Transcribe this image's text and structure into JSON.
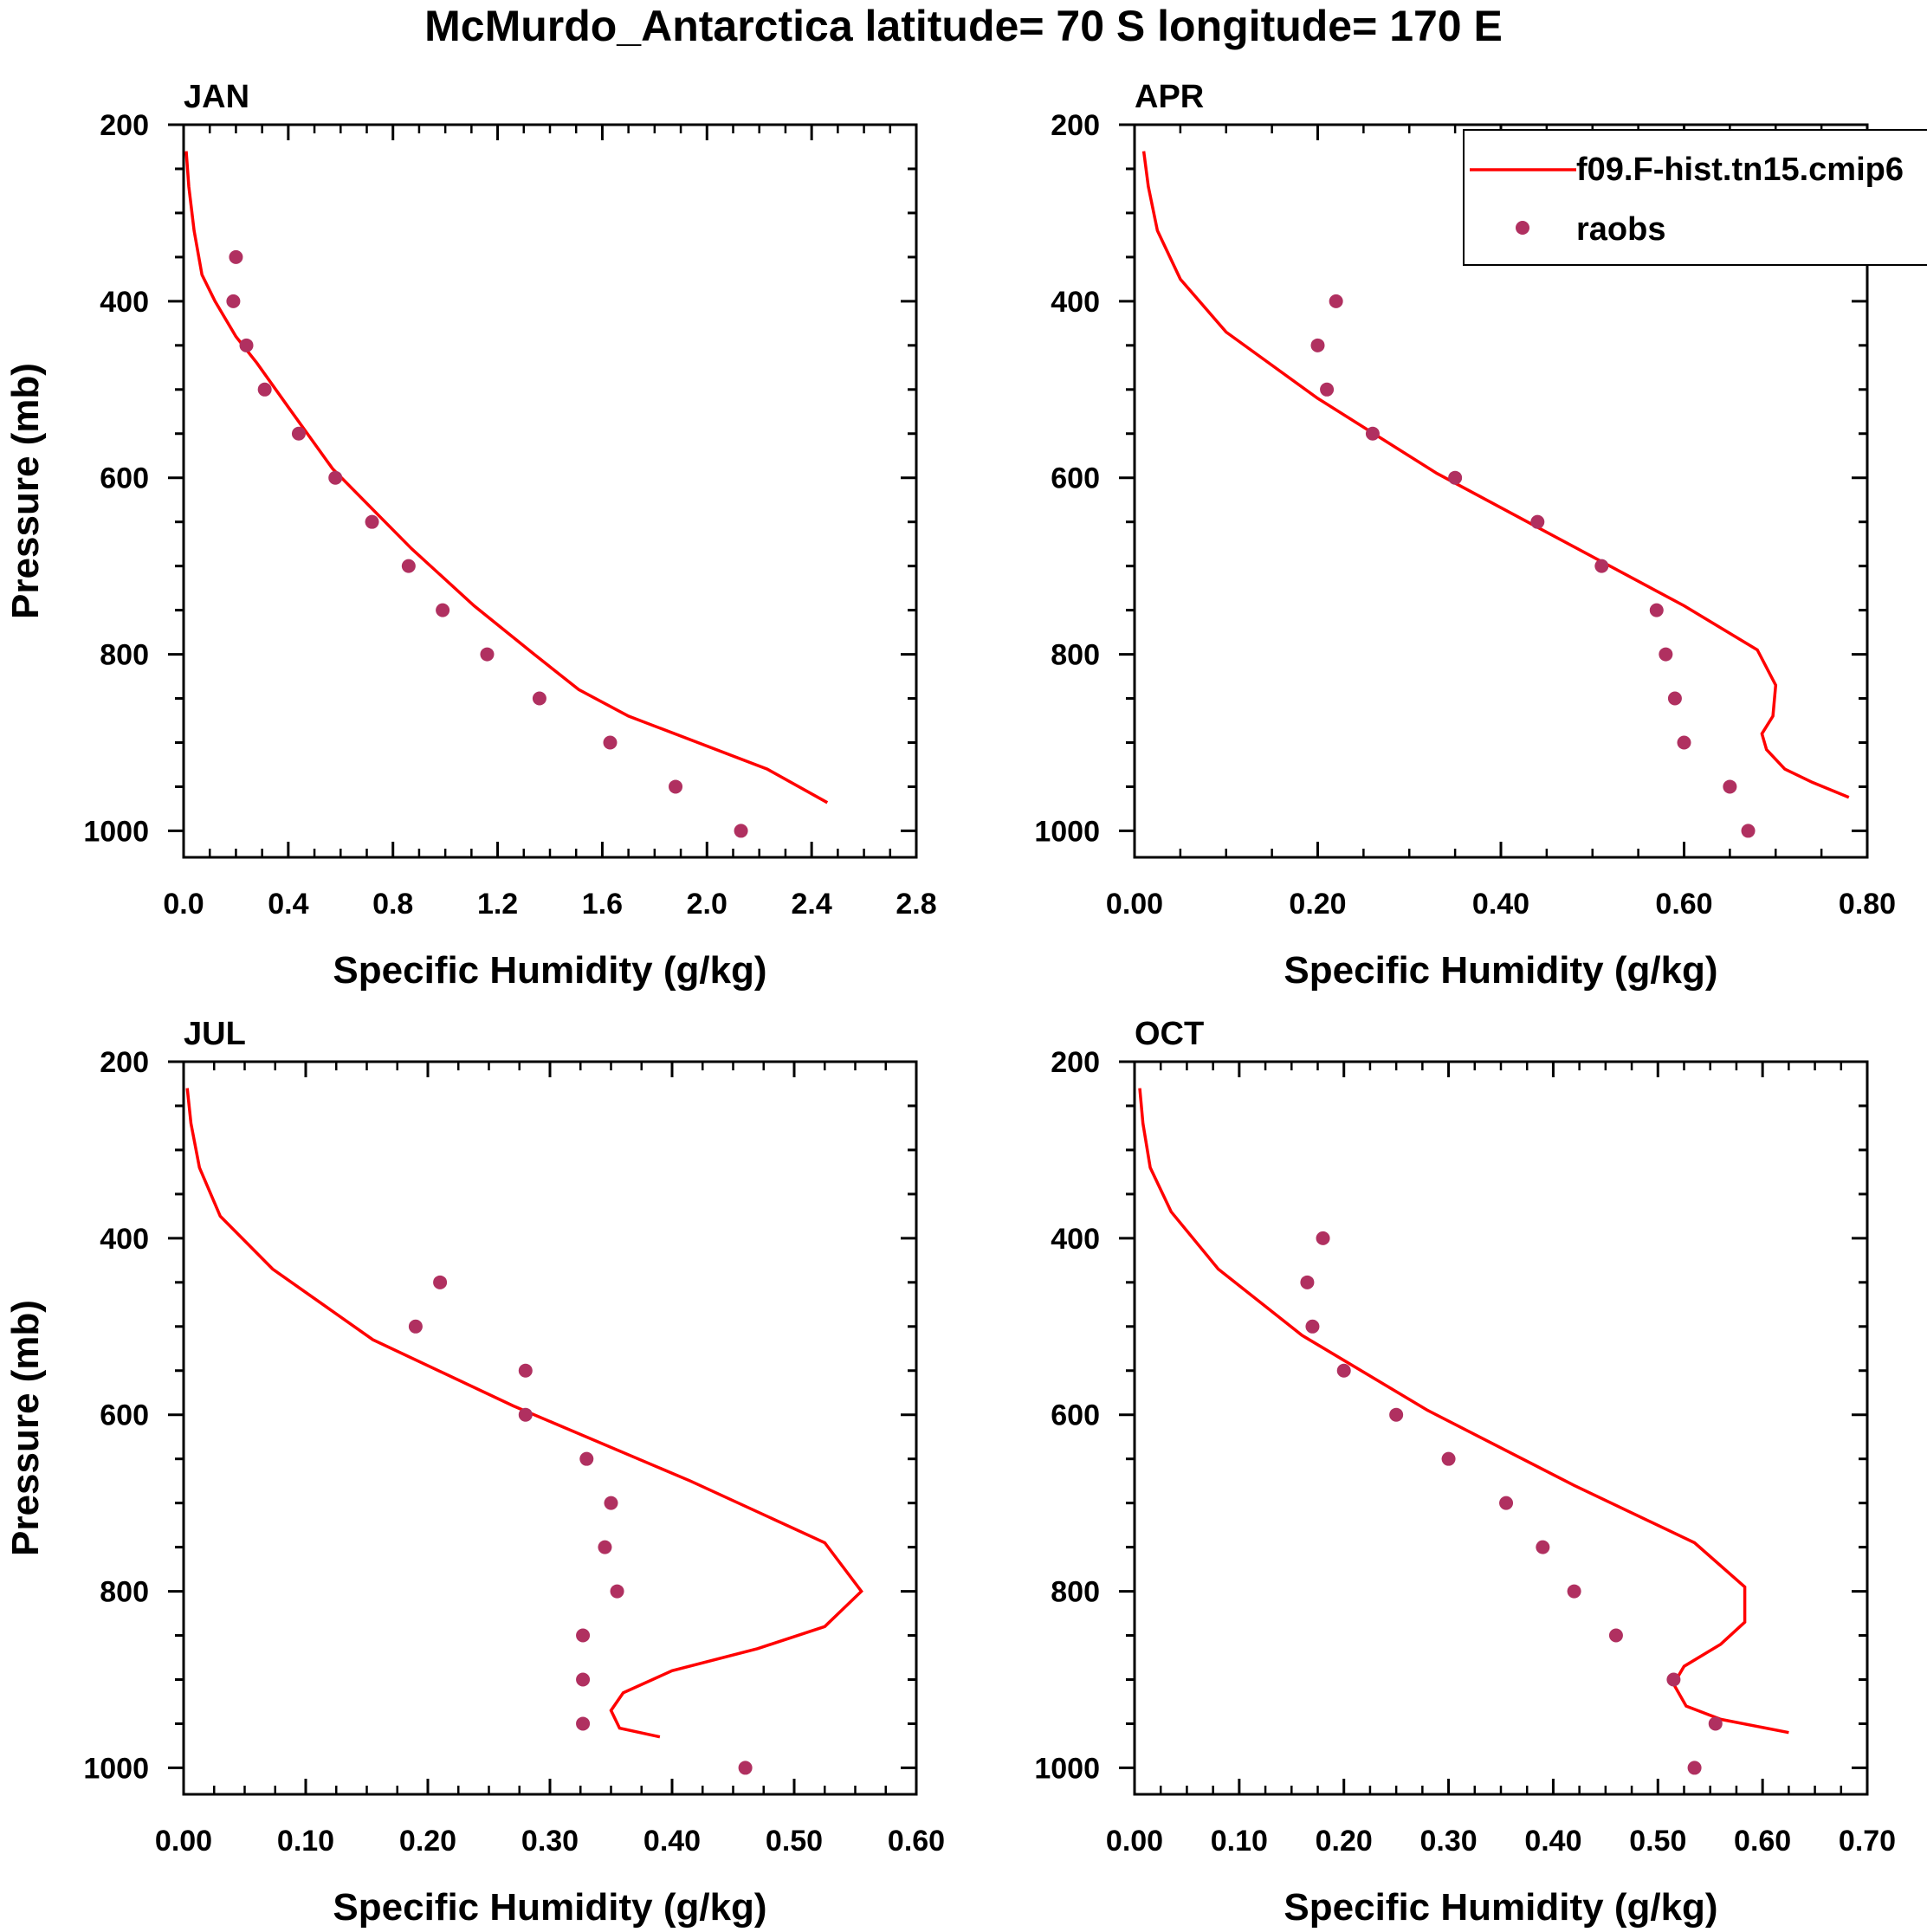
{
  "title": "McMurdo_Antarctica  latitude= 70 S longitude= 170 E",
  "colors": {
    "model_line": "#ff0000",
    "raobs_marker": "#b03060",
    "axes": "#000000"
  },
  "legend": {
    "placement": "top-right of APR panel",
    "model_label": "f09.F-hist.tn15.cmip6",
    "raobs_label": "raobs"
  },
  "chart_data": [
    {
      "type": "line",
      "panel_title": "JAN",
      "xlabel": "Specific Humidity (g/kg)",
      "ylabel": "Pressure (mb)",
      "xlim": [
        0,
        2.8
      ],
      "xticks": [
        0.0,
        0.4,
        0.8,
        1.2,
        1.6,
        2.0,
        2.4,
        2.8
      ],
      "xtick_labels": [
        "0.0",
        "0.4",
        "0.8",
        "1.2",
        "1.6",
        "2.0",
        "2.4",
        "2.8"
      ],
      "ylim": [
        1030,
        200
      ],
      "yticks": [
        200,
        400,
        600,
        800,
        1000
      ],
      "yticklabels": [
        "200",
        "400",
        "600",
        "800",
        "1000"
      ],
      "series": [
        {
          "name": "f09.F-hist.tn15.cmip6",
          "kind": "line",
          "x": [
            0.01,
            0.02,
            0.04,
            0.07,
            0.12,
            0.2,
            0.28,
            0.4,
            0.57,
            0.87,
            1.11,
            1.34,
            1.51,
            1.7,
            2.23,
            2.46
          ],
          "y": [
            230,
            270,
            320,
            370,
            400,
            440,
            470,
            520,
            590,
            680,
            745,
            800,
            840,
            870,
            930,
            968
          ]
        },
        {
          "name": "raobs",
          "kind": "scatter",
          "x": [
            0.2,
            0.19,
            0.24,
            0.31,
            0.44,
            0.58,
            0.72,
            0.86,
            0.99,
            1.16,
            1.36,
            1.63,
            1.88,
            2.13
          ],
          "y": [
            350,
            400,
            450,
            500,
            550,
            600,
            650,
            700,
            750,
            800,
            850,
            900,
            950,
            1000
          ]
        }
      ]
    },
    {
      "type": "line",
      "panel_title": "APR",
      "xlabel": "Specific Humidity (g/kg)",
      "ylabel": "",
      "xlim": [
        0,
        0.8
      ],
      "xticks": [
        0.0,
        0.2,
        0.4,
        0.6,
        0.8
      ],
      "xtick_labels": [
        "0.00",
        "0.20",
        "0.40",
        "0.60",
        "0.80"
      ],
      "ylim": [
        1030,
        200
      ],
      "yticks": [
        200,
        400,
        600,
        800,
        1000
      ],
      "yticklabels": [
        "200",
        "400",
        "600",
        "800",
        "1000"
      ],
      "series": [
        {
          "name": "f09.F-hist.tn15.cmip6",
          "kind": "line",
          "x": [
            0.01,
            0.015,
            0.025,
            0.05,
            0.1,
            0.2,
            0.33,
            0.6,
            0.68,
            0.7,
            0.697,
            0.685,
            0.69,
            0.71,
            0.74,
            0.78
          ],
          "y": [
            230,
            270,
            320,
            375,
            435,
            510,
            595,
            745,
            795,
            835,
            870,
            890,
            908,
            930,
            945,
            962
          ]
        },
        {
          "name": "raobs",
          "kind": "scatter",
          "x": [
            0.22,
            0.2,
            0.21,
            0.26,
            0.35,
            0.44,
            0.51,
            0.57,
            0.58,
            0.59,
            0.6,
            0.65,
            0.67
          ],
          "y": [
            400,
            450,
            500,
            550,
            600,
            650,
            700,
            750,
            800,
            850,
            900,
            950,
            1000
          ]
        }
      ]
    },
    {
      "type": "line",
      "panel_title": "JUL",
      "xlabel": "Specific Humidity (g/kg)",
      "ylabel": "Pressure (mb)",
      "xlim": [
        0,
        0.6
      ],
      "xticks": [
        0.0,
        0.1,
        0.2,
        0.3,
        0.4,
        0.5,
        0.6
      ],
      "xtick_labels": [
        "0.00",
        "0.10",
        "0.20",
        "0.30",
        "0.40",
        "0.50",
        "0.60"
      ],
      "ylim": [
        1030,
        200
      ],
      "yticks": [
        200,
        400,
        600,
        800,
        1000
      ],
      "yticklabels": [
        "200",
        "400",
        "600",
        "800",
        "1000"
      ],
      "series": [
        {
          "name": "f09.F-hist.tn15.cmip6",
          "kind": "line",
          "x": [
            0.003,
            0.006,
            0.013,
            0.03,
            0.073,
            0.155,
            0.27,
            0.415,
            0.525,
            0.555,
            0.525,
            0.47,
            0.4,
            0.36,
            0.35,
            0.357,
            0.39
          ],
          "y": [
            230,
            270,
            320,
            375,
            435,
            515,
            590,
            675,
            745,
            800,
            840,
            865,
            890,
            915,
            935,
            955,
            965
          ]
        },
        {
          "name": "raobs",
          "kind": "scatter",
          "x": [
            0.21,
            0.19,
            0.28,
            0.28,
            0.33,
            0.35,
            0.345,
            0.355,
            0.327,
            0.327,
            0.327,
            0.46
          ],
          "y": [
            450,
            500,
            550,
            600,
            650,
            700,
            750,
            800,
            850,
            900,
            950,
            1000
          ]
        }
      ]
    },
    {
      "type": "line",
      "panel_title": "OCT",
      "xlabel": "Specific Humidity (g/kg)",
      "ylabel": "",
      "xlim": [
        0,
        0.7
      ],
      "xticks": [
        0.0,
        0.1,
        0.2,
        0.3,
        0.4,
        0.5,
        0.6,
        0.7
      ],
      "xtick_labels": [
        "0.00",
        "0.10",
        "0.20",
        "0.30",
        "0.40",
        "0.50",
        "0.60",
        "0.70"
      ],
      "ylim": [
        1030,
        200
      ],
      "yticks": [
        200,
        400,
        600,
        800,
        1000
      ],
      "yticklabels": [
        "200",
        "400",
        "600",
        "800",
        "1000"
      ],
      "series": [
        {
          "name": "f09.F-hist.tn15.cmip6",
          "kind": "line",
          "x": [
            0.005,
            0.008,
            0.015,
            0.035,
            0.08,
            0.16,
            0.28,
            0.42,
            0.535,
            0.583,
            0.583,
            0.56,
            0.525,
            0.515,
            0.527,
            0.56,
            0.625
          ],
          "y": [
            230,
            270,
            320,
            370,
            435,
            510,
            595,
            680,
            745,
            795,
            835,
            860,
            885,
            905,
            930,
            945,
            960
          ]
        },
        {
          "name": "raobs",
          "kind": "scatter",
          "x": [
            0.18,
            0.165,
            0.17,
            0.2,
            0.25,
            0.3,
            0.355,
            0.39,
            0.42,
            0.46,
            0.515,
            0.555,
            0.535
          ],
          "y": [
            400,
            450,
            500,
            550,
            600,
            650,
            700,
            750,
            800,
            850,
            900,
            950,
            1000
          ]
        }
      ]
    }
  ]
}
